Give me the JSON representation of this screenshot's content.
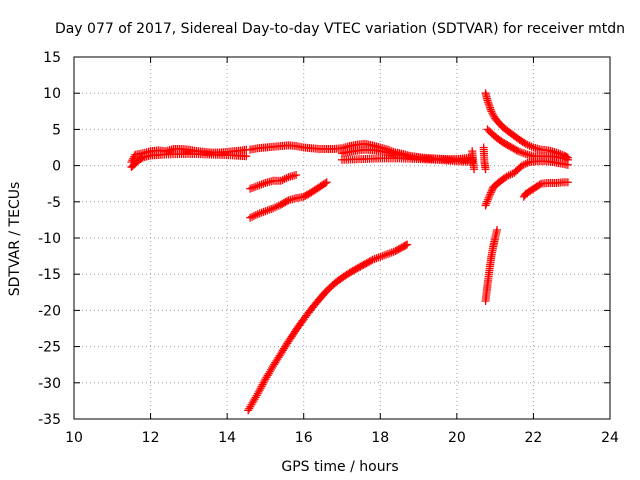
{
  "chart_data": {
    "type": "scatter",
    "title": "Day 077 of 2017, Sidereal Day-to-day VTEC variation (SDTVAR) for receiver mtdn",
    "xlabel": "GPS time / hours",
    "ylabel": "SDTVAR / TECUs",
    "xlim": [
      10,
      24
    ],
    "ylim": [
      -35,
      15
    ],
    "x_ticks": [
      10,
      12,
      14,
      16,
      18,
      20,
      22,
      24
    ],
    "y_ticks": [
      -35,
      -30,
      -25,
      -20,
      -15,
      -10,
      -5,
      0,
      5,
      10,
      15
    ],
    "grid": true,
    "legend": "none",
    "marker": "plus",
    "color": "#ff0000",
    "series": [
      {
        "x": [
          11.5,
          11.6,
          11.8,
          12.0,
          12.2,
          12.4,
          12.6,
          12.8,
          13.0,
          13.2,
          13.4,
          13.6,
          13.8,
          14.0,
          14.2,
          14.4,
          14.5
        ],
        "y": [
          0.5,
          1.5,
          1.7,
          2.0,
          2.1,
          2.0,
          2.3,
          2.3,
          2.2,
          2.0,
          1.9,
          1.8,
          1.8,
          1.9,
          2.0,
          2.1,
          2.2
        ]
      },
      {
        "x": [
          11.5,
          11.6,
          11.7,
          11.8,
          12.0,
          12.3,
          12.7,
          13.2,
          13.7,
          14.2,
          14.5
        ],
        "y": [
          -0.2,
          0.3,
          0.8,
          1.1,
          1.4,
          1.5,
          1.6,
          1.6,
          1.5,
          1.4,
          1.3
        ]
      },
      {
        "x": [
          14.6,
          14.8,
          15.0,
          15.2,
          15.4,
          15.6,
          15.8,
          16.0,
          16.2,
          16.4,
          16.6,
          16.8,
          17.0,
          17.2,
          17.4,
          17.6,
          17.8,
          18.0,
          18.2,
          18.4,
          18.6,
          18.8,
          19.0,
          19.2,
          19.4,
          19.6,
          19.8,
          20.0,
          20.2,
          20.4
        ],
        "y": [
          2.2,
          2.4,
          2.5,
          2.6,
          2.7,
          2.8,
          2.7,
          2.5,
          2.4,
          2.3,
          2.3,
          2.3,
          2.4,
          2.7,
          2.9,
          3.0,
          2.8,
          2.5,
          2.2,
          1.8,
          1.6,
          1.3,
          1.1,
          1.0,
          0.9,
          0.9,
          0.9,
          0.9,
          1.0,
          1.1
        ]
      },
      {
        "x": [
          17.0,
          17.3,
          17.6,
          17.9,
          18.2,
          18.5,
          18.8,
          19.1,
          19.4,
          19.7,
          20.0,
          20.3,
          20.4
        ],
        "y": [
          1.7,
          2.0,
          2.2,
          2.1,
          1.8,
          1.5,
          1.3,
          1.1,
          1.0,
          0.9,
          0.8,
          0.8,
          0.7
        ]
      },
      {
        "x": [
          17.0,
          17.5,
          18.0,
          18.5,
          19.0,
          19.5,
          20.0,
          20.4
        ],
        "y": [
          0.8,
          0.9,
          1.0,
          1.0,
          0.9,
          0.8,
          0.6,
          0.5
        ]
      },
      {
        "x": [
          20.4,
          20.45
        ],
        "y": [
          2.0,
          -0.5
        ]
      },
      {
        "x": [
          20.7,
          20.72,
          20.75
        ],
        "y": [
          2.5,
          0.5,
          -0.5
        ]
      },
      {
        "x": [
          20.75,
          20.8,
          20.9,
          21.0,
          21.2,
          21.4,
          21.6,
          21.8,
          22.0,
          22.2,
          22.4,
          22.6,
          22.8,
          22.9
        ],
        "y": [
          10.0,
          9.0,
          7.5,
          6.5,
          5.3,
          4.5,
          3.7,
          3.0,
          2.5,
          2.2,
          2.1,
          1.8,
          1.4,
          1.1
        ]
      },
      {
        "x": [
          20.8,
          21.0,
          21.2,
          21.4,
          21.6,
          21.8,
          22.0,
          22.2,
          22.4,
          22.6,
          22.8,
          22.9
        ],
        "y": [
          5.0,
          4.0,
          3.2,
          2.6,
          2.0,
          1.6,
          1.3,
          1.3,
          1.3,
          1.2,
          1.0,
          0.8
        ]
      },
      {
        "x": [
          20.75,
          20.85,
          20.95,
          21.1,
          21.3,
          21.5,
          21.7,
          21.9,
          22.1,
          22.3,
          22.5,
          22.7,
          22.9
        ],
        "y": [
          -5.5,
          -4.2,
          -3.0,
          -2.3,
          -1.5,
          -1.0,
          0.0,
          0.5,
          0.6,
          0.6,
          0.5,
          0.3,
          0.1
        ]
      },
      {
        "x": [
          14.6,
          14.8,
          15.0,
          15.2,
          15.4,
          15.6,
          15.8
        ],
        "y": [
          -3.2,
          -2.8,
          -2.4,
          -2.1,
          -2.1,
          -1.6,
          -1.3
        ]
      },
      {
        "x": [
          14.6,
          14.8,
          15.0,
          15.2,
          15.4,
          15.6,
          15.8,
          16.0,
          16.2,
          16.4,
          16.6
        ],
        "y": [
          -7.2,
          -6.7,
          -6.3,
          -5.9,
          -5.4,
          -4.8,
          -4.5,
          -4.3,
          -3.7,
          -3.0,
          -2.3
        ]
      },
      {
        "x": [
          14.55,
          14.8,
          15.0,
          15.2,
          15.4,
          15.6,
          15.8,
          16.0,
          16.2,
          16.4,
          16.6,
          16.8,
          17.0,
          17.2,
          17.4,
          17.6,
          17.8,
          18.0,
          18.2,
          18.4,
          18.6,
          18.7
        ],
        "y": [
          -33.8,
          -31.5,
          -29.5,
          -27.7,
          -26.0,
          -24.3,
          -22.7,
          -21.2,
          -19.8,
          -18.5,
          -17.3,
          -16.3,
          -15.5,
          -14.8,
          -14.2,
          -13.6,
          -13.0,
          -12.6,
          -12.2,
          -11.8,
          -11.2,
          -10.9
        ]
      },
      {
        "x": [
          20.75,
          20.8,
          20.85,
          20.9,
          20.95,
          21.0,
          21.05
        ],
        "y": [
          -18.7,
          -16.5,
          -14.5,
          -12.6,
          -11.2,
          -10.0,
          -8.9
        ]
      },
      {
        "x": [
          21.75,
          21.8,
          22.0,
          22.2,
          22.4,
          22.6,
          22.8,
          22.9
        ],
        "y": [
          -4.3,
          -3.9,
          -3.2,
          -2.5,
          -2.4,
          -2.4,
          -2.3,
          -2.3
        ]
      }
    ]
  }
}
